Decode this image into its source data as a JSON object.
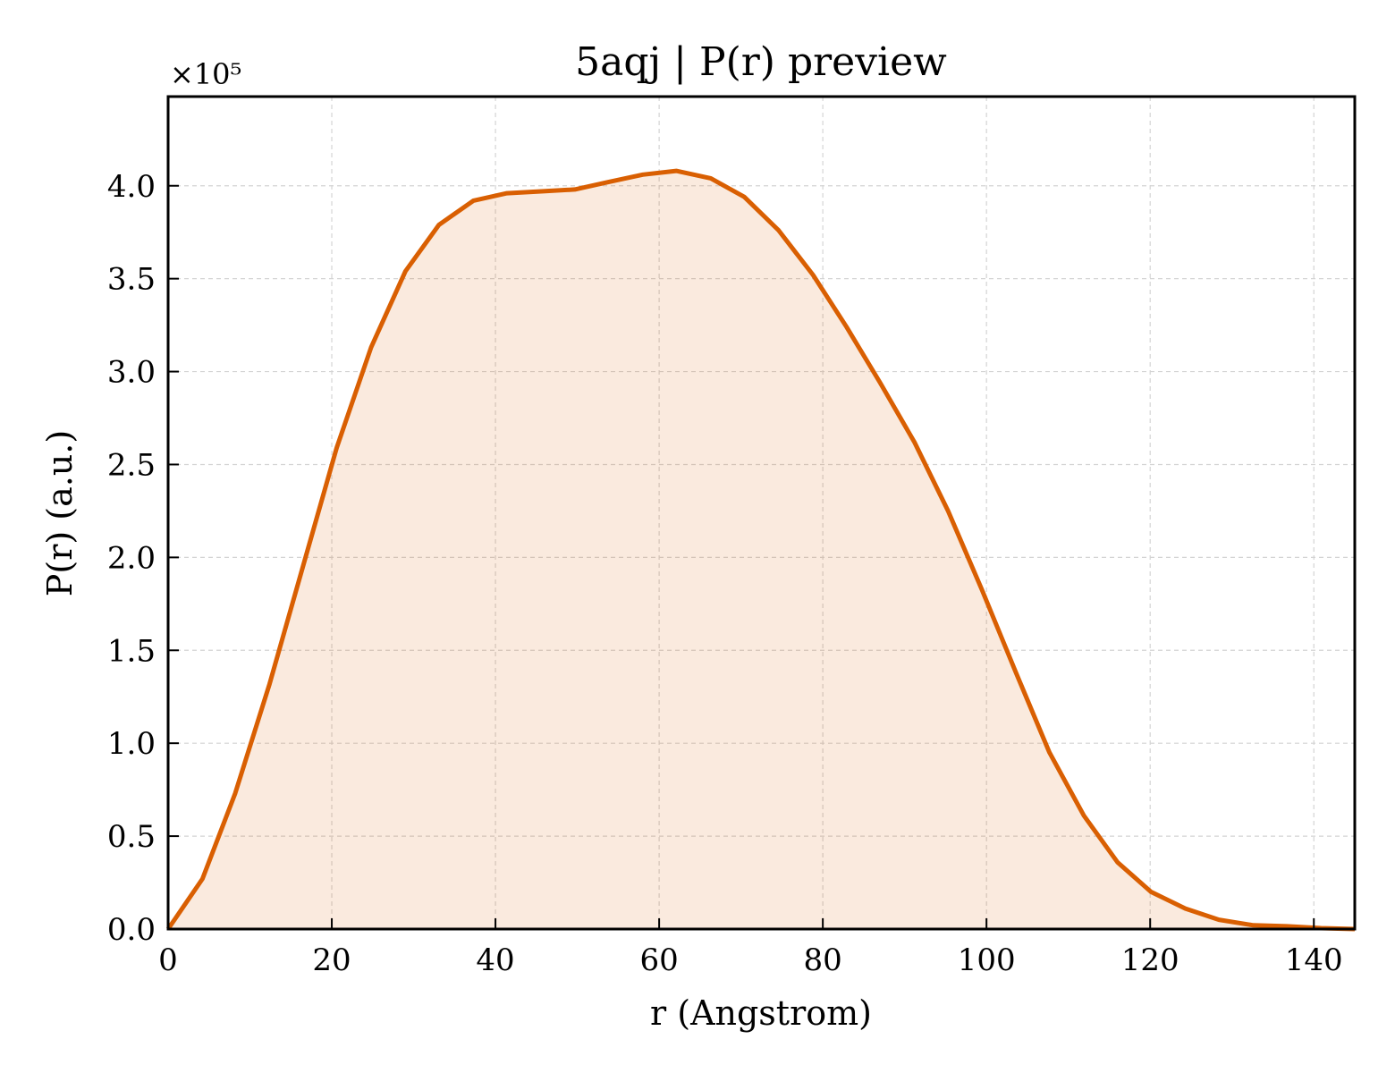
{
  "chart_data": {
    "type": "area",
    "title": "5aqj | P(r) preview",
    "xlabel": "r (Angstrom)",
    "ylabel": "P(r) (a.u.)",
    "y_offset_text": "×10⁵",
    "y_scale": 100000,
    "xlim": [
      0,
      145
    ],
    "ylim": [
      0,
      4.48
    ],
    "xticks": [
      0,
      20,
      40,
      60,
      80,
      100,
      120,
      140
    ],
    "yticks": [
      0.0,
      0.5,
      1.0,
      1.5,
      2.0,
      2.5,
      3.0,
      3.5,
      4.0
    ],
    "xtick_labels": [
      "0",
      "20",
      "40",
      "60",
      "80",
      "100",
      "120",
      "140"
    ],
    "ytick_labels": [
      "0.0",
      "0.5",
      "1.0",
      "1.5",
      "2.0",
      "2.5",
      "3.0",
      "3.5",
      "4.0"
    ],
    "grid": true,
    "series": [
      {
        "color": "#d95f02",
        "fill_color": "#d95f02",
        "fill_opacity": 0.13,
        "x": [
          0,
          4.2,
          8.2,
          12.4,
          16.6,
          20.6,
          24.8,
          29.0,
          33.1,
          37.3,
          41.4,
          45.6,
          49.7,
          53.8,
          58.0,
          62.1,
          66.3,
          70.4,
          74.6,
          78.8,
          82.9,
          87.0,
          91.2,
          95.3,
          99.4,
          103.6,
          107.7,
          111.9,
          116.0,
          120.1,
          124.3,
          128.4,
          132.6,
          136.7,
          140.9,
          145.0
        ],
        "y": [
          0.0,
          0.27,
          0.73,
          1.32,
          1.97,
          2.59,
          3.13,
          3.54,
          3.79,
          3.92,
          3.96,
          3.97,
          3.98,
          4.02,
          4.06,
          4.08,
          4.04,
          3.94,
          3.76,
          3.52,
          3.24,
          2.94,
          2.62,
          2.25,
          1.83,
          1.38,
          0.95,
          0.61,
          0.36,
          0.2,
          0.11,
          0.05,
          0.02,
          0.015,
          0.005,
          0.0
        ]
      }
    ]
  }
}
